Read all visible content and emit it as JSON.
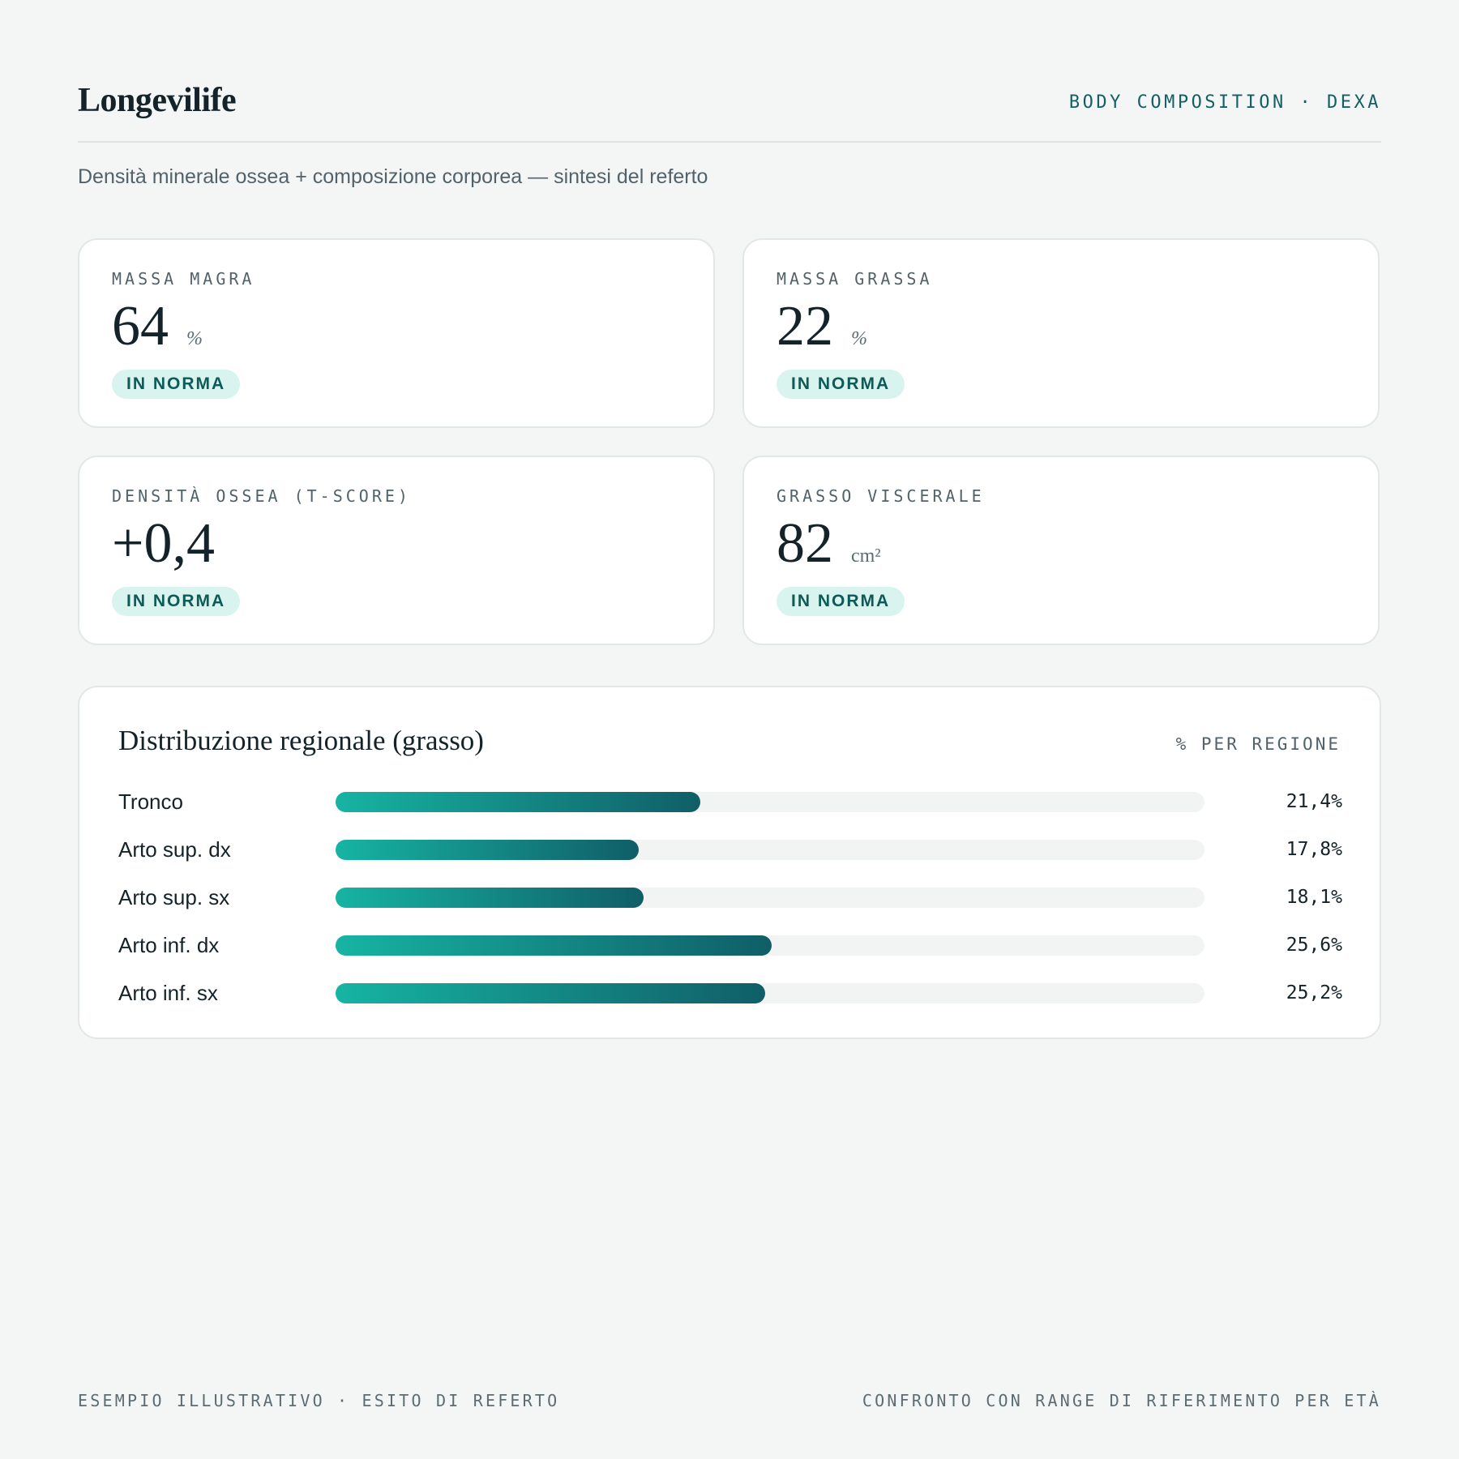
{
  "header": {
    "brand": "Longevilife",
    "tagline": "BODY COMPOSITION · DEXA"
  },
  "subtitle": "Densità minerale ossea + composizione corporea — sintesi del referto",
  "cards": [
    {
      "label": "MASSA MAGRA",
      "value": "64",
      "unit": "%",
      "badge": "IN NORMA"
    },
    {
      "label": "MASSA GRASSA",
      "value": "22",
      "unit": "%",
      "badge": "IN NORMA"
    },
    {
      "label": "DENSITÀ OSSEA (T-SCORE)",
      "value": "+0,4",
      "unit": "",
      "badge": "IN NORMA"
    },
    {
      "label": "GRASSO VISCERALE",
      "value": "82",
      "unit": "cm²",
      "badge": "IN NORMA"
    }
  ],
  "distribution": {
    "title": "Distribuzione regionale (grasso)",
    "meta": "% PER REGIONE",
    "rows": [
      {
        "label": "Tronco",
        "value": 21.4,
        "display": "21,4%"
      },
      {
        "label": "Arto sup. dx",
        "value": 17.8,
        "display": "17,8%"
      },
      {
        "label": "Arto sup. sx",
        "value": 18.1,
        "display": "18,1%"
      },
      {
        "label": "Arto inf. dx",
        "value": 25.6,
        "display": "25,6%"
      },
      {
        "label": "Arto inf. sx",
        "value": 25.2,
        "display": "25,2%"
      }
    ],
    "scale_max": 51
  },
  "footer": {
    "left": "ESEMPIO ILLUSTRATIVO · ESITO DI REFERTO",
    "right": "CONFRONTO CON RANGE DI RIFERIMENTO PER ETÀ"
  },
  "colors": {
    "accent": "#145f63",
    "badge_bg": "#d9f3ee",
    "badge_text": "#0d5b58",
    "bar_start": "#16b4a3",
    "bar_end": "#105e67"
  }
}
